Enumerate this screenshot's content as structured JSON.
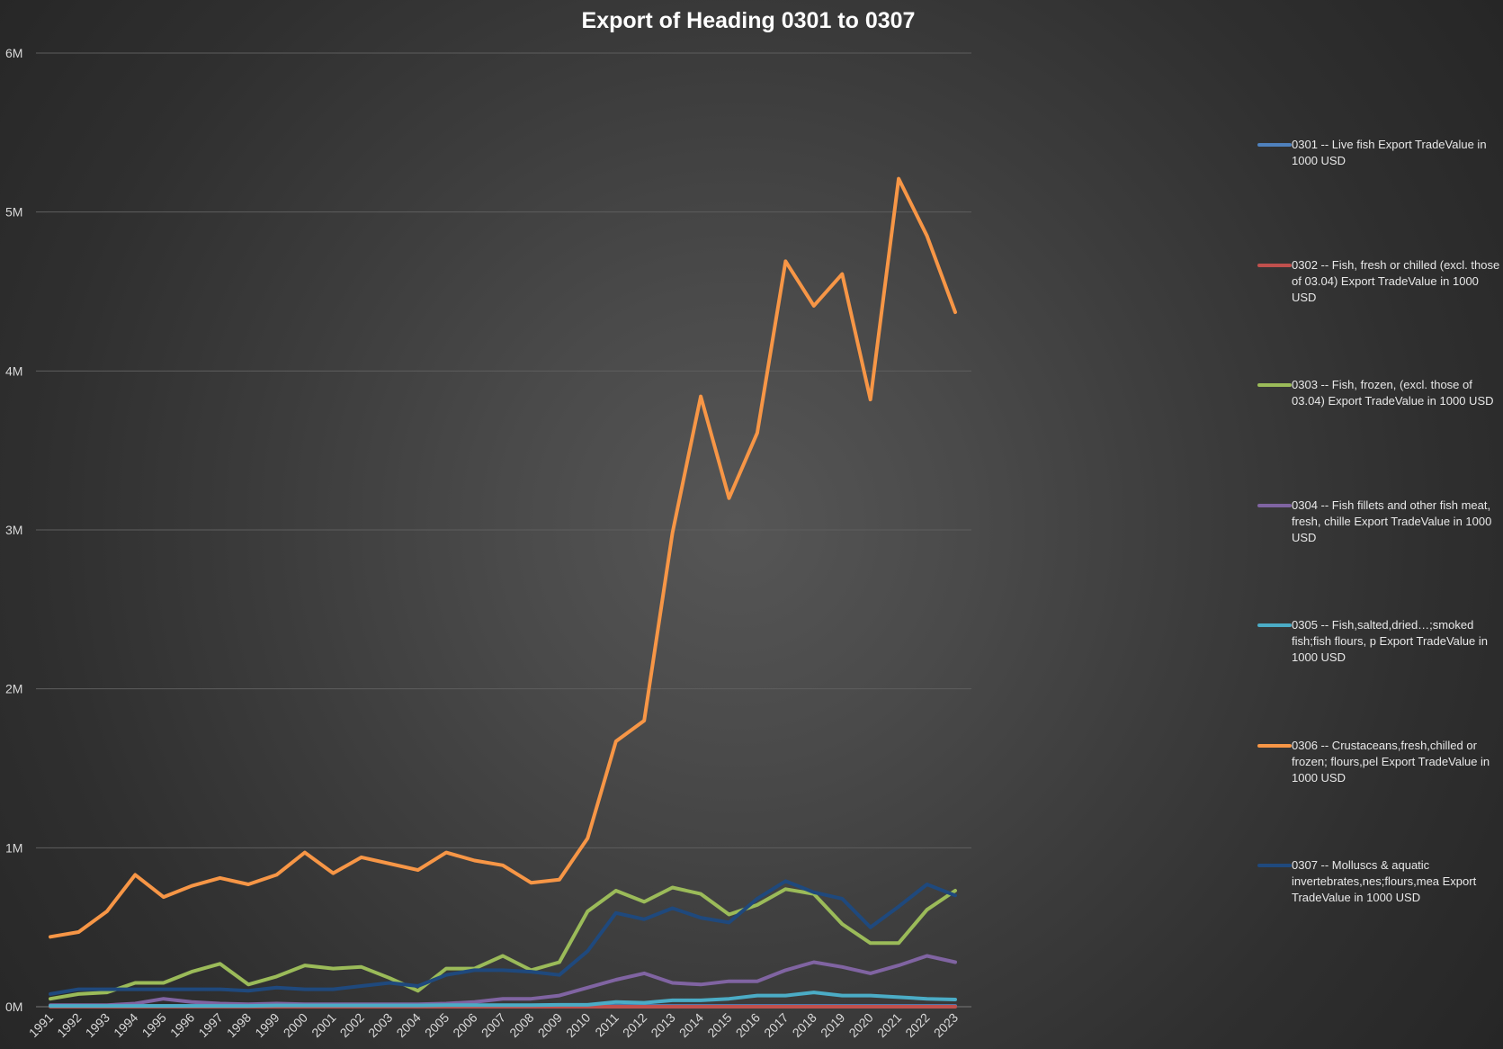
{
  "chart_data": {
    "type": "line",
    "title": "Export of Heading 0301 to 0307",
    "xlabel": "",
    "ylabel": "",
    "ylim": [
      0,
      6000000
    ],
    "y_ticks": [
      {
        "value": 0,
        "label": "0M"
      },
      {
        "value": 1000000,
        "label": "1M"
      },
      {
        "value": 2000000,
        "label": "2M"
      },
      {
        "value": 3000000,
        "label": "3M"
      },
      {
        "value": 4000000,
        "label": "4M"
      },
      {
        "value": 5000000,
        "label": "5M"
      },
      {
        "value": 6000000,
        "label": "6M"
      }
    ],
    "grid": true,
    "legend_position": "right",
    "categories": [
      "1991",
      "1992",
      "1993",
      "1994",
      "1995",
      "1996",
      "1997",
      "1998",
      "1999",
      "2000",
      "2001",
      "2002",
      "2003",
      "2004",
      "2005",
      "2006",
      "2007",
      "2008",
      "2009",
      "2010",
      "2011",
      "2012",
      "2013",
      "2014",
      "2015",
      "2016",
      "2017",
      "2018",
      "2019",
      "2020",
      "2021",
      "2022",
      "2023"
    ],
    "series": [
      {
        "name": "0301 -- Live fish Export TradeValue in 1000 USD",
        "color": "#4f81bd",
        "values": [
          5000,
          5000,
          5000,
          5000,
          5000,
          5000,
          5000,
          5000,
          5000,
          5000,
          5000,
          5000,
          5000,
          5000,
          5000,
          5000,
          5000,
          5000,
          5000,
          5000,
          5000,
          5000,
          5000,
          5000,
          5000,
          5000,
          5000,
          5000,
          5000,
          5000,
          5000,
          5000,
          5000
        ]
      },
      {
        "name": "0302 -- Fish, fresh or chilled (excl. those of 03.04) Export TradeValue in 1000 USD",
        "color": "#c0504d",
        "values": [
          0,
          0,
          0,
          0,
          0,
          0,
          0,
          0,
          0,
          0,
          0,
          0,
          0,
          0,
          0,
          0,
          0,
          0,
          0,
          0,
          0,
          0,
          0,
          0,
          0,
          0,
          0,
          0,
          0,
          0,
          0,
          0,
          0
        ]
      },
      {
        "name": "0303 -- Fish, frozen, (excl. those of 03.04) Export TradeValue in 1000 USD",
        "color": "#9bbb59",
        "values": [
          50000,
          80000,
          90000,
          150000,
          150000,
          220000,
          270000,
          140000,
          190000,
          260000,
          240000,
          250000,
          180000,
          100000,
          240000,
          240000,
          320000,
          230000,
          280000,
          600000,
          730000,
          660000,
          750000,
          710000,
          580000,
          640000,
          740000,
          710000,
          520000,
          400000,
          400000,
          610000,
          730000
        ]
      },
      {
        "name": "0304 -- Fish fillets and other fish meat, fresh, chille Export TradeValue in 1000 USD",
        "color": "#8064a2",
        "values": [
          10000,
          10000,
          10000,
          20000,
          50000,
          30000,
          20000,
          15000,
          20000,
          15000,
          15000,
          15000,
          15000,
          15000,
          20000,
          30000,
          50000,
          50000,
          70000,
          120000,
          170000,
          210000,
          150000,
          140000,
          160000,
          160000,
          230000,
          280000,
          250000,
          210000,
          260000,
          320000,
          280000
        ]
      },
      {
        "name": "0305 -- Fish,salted,dried…;smoked fish;fish flours, p Export TradeValue in 1000 USD",
        "color": "#4bacc6",
        "values": [
          5000,
          5000,
          5000,
          5000,
          5000,
          5000,
          5000,
          5000,
          8000,
          8000,
          8000,
          8000,
          8000,
          8000,
          10000,
          10000,
          10000,
          10000,
          12000,
          12000,
          30000,
          25000,
          40000,
          40000,
          50000,
          70000,
          70000,
          90000,
          70000,
          70000,
          60000,
          50000,
          45000
        ]
      },
      {
        "name": "0306 -- Crustaceans,fresh,chilled or frozen; flours,pel Export TradeValue in 1000 USD",
        "color": "#f79646",
        "values": [
          440000,
          470000,
          600000,
          830000,
          690000,
          760000,
          810000,
          770000,
          830000,
          970000,
          840000,
          940000,
          900000,
          860000,
          970000,
          920000,
          890000,
          780000,
          800000,
          1060000,
          1670000,
          1800000,
          2980000,
          3840000,
          3200000,
          3610000,
          4690000,
          4410000,
          4610000,
          3820000,
          5210000,
          4850000,
          4370000
        ]
      },
      {
        "name": "0307 -- Molluscs & aquatic invertebrates,nes;flours,mea Export TradeValue in 1000 USD",
        "color": "#1f497d",
        "values": [
          80000,
          110000,
          110000,
          110000,
          110000,
          110000,
          110000,
          100000,
          120000,
          110000,
          110000,
          130000,
          150000,
          130000,
          200000,
          230000,
          230000,
          220000,
          200000,
          350000,
          590000,
          550000,
          620000,
          560000,
          530000,
          680000,
          790000,
          720000,
          680000,
          500000,
          630000,
          770000,
          700000
        ]
      }
    ]
  }
}
